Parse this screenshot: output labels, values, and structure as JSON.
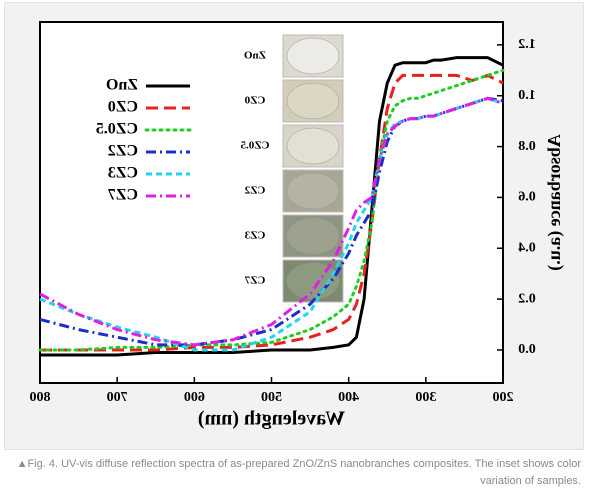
{
  "chart_data": {
    "type": "line",
    "xlabel": "Wavelength (nm)",
    "ylabel": "Absorbance (a.u.)",
    "x": [
      800,
      750,
      700,
      650,
      600,
      550,
      500,
      450,
      420,
      400,
      390,
      380,
      370,
      360,
      350,
      340,
      330,
      320,
      310,
      300,
      290,
      280,
      260,
      240,
      220,
      200
    ],
    "series": [
      {
        "name": "ZnO",
        "color": "#000000",
        "dash": "solid",
        "values": [
          -0.02,
          -0.02,
          -0.02,
          -0.01,
          -0.01,
          -0.01,
          0.0,
          0.0,
          0.01,
          0.02,
          0.05,
          0.2,
          0.55,
          0.9,
          1.05,
          1.12,
          1.13,
          1.13,
          1.13,
          1.13,
          1.14,
          1.14,
          1.15,
          1.15,
          1.15,
          1.12
        ]
      },
      {
        "name": "CZ0",
        "color": "#e8201e",
        "dash": "dash",
        "values": [
          0.0,
          0.0,
          0.0,
          0.0,
          0.01,
          0.01,
          0.02,
          0.05,
          0.08,
          0.12,
          0.18,
          0.3,
          0.5,
          0.75,
          0.95,
          1.05,
          1.08,
          1.08,
          1.08,
          1.08,
          1.08,
          1.08,
          1.08,
          1.06,
          1.08,
          1.05
        ]
      },
      {
        "name": "CZ0.5",
        "color": "#22cc22",
        "dash": "dot",
        "values": [
          0.0,
          0.0,
          0.01,
          0.01,
          0.02,
          0.02,
          0.03,
          0.08,
          0.13,
          0.18,
          0.25,
          0.35,
          0.5,
          0.75,
          0.9,
          0.96,
          0.98,
          0.99,
          0.99,
          1.0,
          1.01,
          1.02,
          1.04,
          1.06,
          1.08,
          1.1
        ]
      },
      {
        "name": "CZ2",
        "color": "#1a2ecc",
        "dash": "dashdot",
        "values": [
          0.12,
          0.08,
          0.05,
          0.02,
          0.02,
          0.04,
          0.08,
          0.18,
          0.28,
          0.38,
          0.45,
          0.5,
          0.55,
          0.7,
          0.82,
          0.88,
          0.9,
          0.91,
          0.91,
          0.92,
          0.92,
          0.93,
          0.95,
          0.97,
          0.99,
          0.98
        ]
      },
      {
        "name": "CZ3",
        "color": "#22d4ee",
        "dash": "shortdash",
        "values": [
          0.2,
          0.14,
          0.09,
          0.05,
          0.0,
          0.0,
          0.05,
          0.15,
          0.3,
          0.42,
          0.5,
          0.55,
          0.6,
          0.75,
          0.85,
          0.89,
          0.9,
          0.91,
          0.91,
          0.92,
          0.92,
          0.93,
          0.95,
          0.97,
          0.99,
          0.97
        ]
      },
      {
        "name": "CZ7",
        "color": "#e020e0",
        "dash": "dashdot",
        "values": [
          0.22,
          0.14,
          0.08,
          0.04,
          0.02,
          0.04,
          0.1,
          0.22,
          0.35,
          0.48,
          0.55,
          0.58,
          0.6,
          0.75,
          0.85,
          0.88,
          0.9,
          0.91,
          0.91,
          0.92,
          0.92,
          0.93,
          0.95,
          0.97,
          0.99,
          0.97
        ]
      }
    ],
    "xlim": [
      800,
      200
    ],
    "xticks": [
      800,
      700,
      600,
      500,
      400,
      300,
      200
    ],
    "ylim": [
      -0.13,
      1.29
    ],
    "yticks": [
      {
        "value": 0,
        "label": "0.0"
      },
      {
        "value": 0.2,
        "label": "0.2"
      },
      {
        "value": 0.4,
        "label": "0.4"
      },
      {
        "value": 0.6,
        "label": "0.6"
      },
      {
        "value": 0.8,
        "label": "0.8"
      },
      {
        "value": 1.0,
        "label": "1.0"
      },
      {
        "value": 1.2,
        "label": "1.2"
      }
    ],
    "mirrored": true,
    "inset_labels": [
      "ZnO",
      "CZ0",
      "CZ0.5",
      "CZ2",
      "CZ3",
      "CZ7"
    ]
  },
  "caption": "▲Fig. 4. UV-vis diffuse reflection spectra of as-prepared ZnO/ZnS nanobranches composites. The inset shows color variation of samples."
}
